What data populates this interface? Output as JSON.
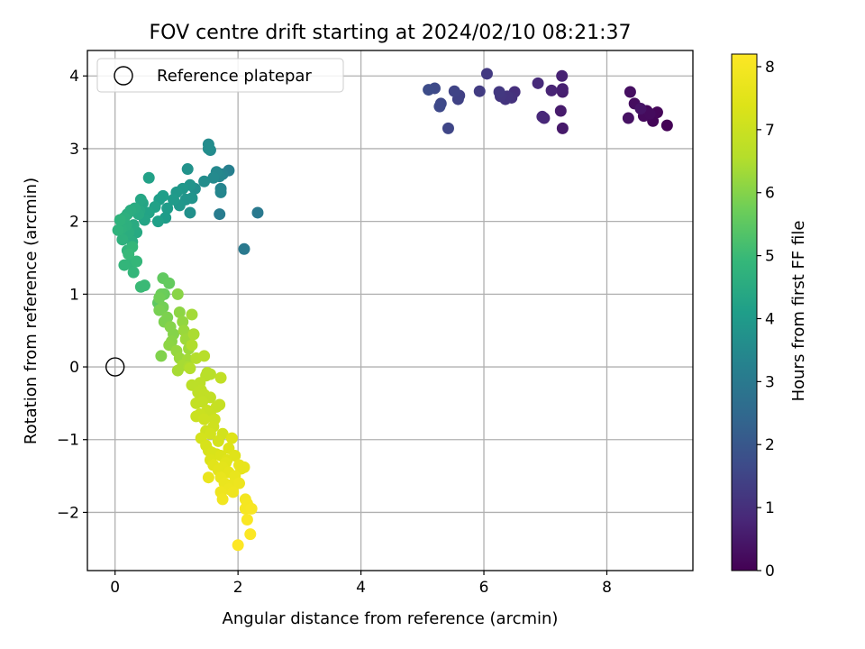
{
  "chart_data": {
    "type": "scatter",
    "title": "FOV centre drift starting at 2024/02/10 08:21:37",
    "xlabel": "Angular distance from reference (arcmin)",
    "ylabel": "Rotation from reference (arcmin)",
    "xlim": [
      -0.45,
      9.4
    ],
    "ylim": [
      -2.8,
      4.35
    ],
    "x_ticks": [
      0,
      2,
      4,
      6,
      8
    ],
    "y_ticks": [
      -2,
      -1,
      0,
      1,
      2,
      3,
      4
    ],
    "x_tick_labels": [
      "0",
      "2",
      "4",
      "6",
      "8"
    ],
    "y_tick_labels": [
      "−2",
      "−1",
      "0",
      "1",
      "2",
      "3",
      "4"
    ],
    "grid": true,
    "legend": {
      "location": "top-left",
      "entries": [
        {
          "label": "Reference platepar",
          "marker": "open-circle",
          "color": "#000000"
        }
      ]
    },
    "reference_point": {
      "x": 0,
      "y": 0
    },
    "colorbar": {
      "label": "Hours from first FF file",
      "colormap": "viridis",
      "range": [
        0,
        8.2
      ],
      "ticks": [
        0,
        1,
        2,
        3,
        4,
        5,
        6,
        7,
        8
      ],
      "tick_labels": [
        "0",
        "1",
        "2",
        "3",
        "4",
        "5",
        "6",
        "7",
        "8"
      ]
    },
    "points_columns": [
      "x",
      "y",
      "hours"
    ],
    "points": [
      [
        8.98,
        3.32,
        0.05
      ],
      [
        8.75,
        3.38,
        0.1
      ],
      [
        8.82,
        3.5,
        0.12
      ],
      [
        8.65,
        3.52,
        0.15
      ],
      [
        8.6,
        3.45,
        0.18
      ],
      [
        8.7,
        3.48,
        0.2
      ],
      [
        8.45,
        3.62,
        0.25
      ],
      [
        8.38,
        3.78,
        0.3
      ],
      [
        8.35,
        3.42,
        0.35
      ],
      [
        8.55,
        3.55,
        0.4
      ],
      [
        7.28,
        3.28,
        0.5
      ],
      [
        7.25,
        3.52,
        0.55
      ],
      [
        7.28,
        3.78,
        0.6
      ],
      [
        7.28,
        3.82,
        0.65
      ],
      [
        7.27,
        4.0,
        0.7
      ],
      [
        7.1,
        3.8,
        0.75
      ],
      [
        6.98,
        3.42,
        0.8
      ],
      [
        6.95,
        3.44,
        0.85
      ],
      [
        6.88,
        3.9,
        0.9
      ],
      [
        6.5,
        3.78,
        1.0
      ],
      [
        6.45,
        3.7,
        1.05
      ],
      [
        6.38,
        3.72,
        1.1
      ],
      [
        6.35,
        3.68,
        1.12
      ],
      [
        6.27,
        3.72,
        1.15
      ],
      [
        6.25,
        3.78,
        1.2
      ],
      [
        6.05,
        4.03,
        1.25
      ],
      [
        5.93,
        3.79,
        1.3
      ],
      [
        5.6,
        3.73,
        1.4
      ],
      [
        5.58,
        3.68,
        1.45
      ],
      [
        5.52,
        3.79,
        1.5
      ],
      [
        5.42,
        3.28,
        1.55
      ],
      [
        5.3,
        3.62,
        1.6
      ],
      [
        5.28,
        3.58,
        1.62
      ],
      [
        5.2,
        3.83,
        1.65
      ],
      [
        5.1,
        3.81,
        1.7
      ],
      [
        2.32,
        2.12,
        3.0
      ],
      [
        2.1,
        1.62,
        3.0
      ],
      [
        1.7,
        2.1,
        3.1
      ],
      [
        1.85,
        2.7,
        3.2
      ],
      [
        1.75,
        2.65,
        3.3
      ],
      [
        1.72,
        2.45,
        3.35
      ],
      [
        1.72,
        2.4,
        3.4
      ],
      [
        1.7,
        2.62,
        3.4
      ],
      [
        1.65,
        2.68,
        3.45
      ],
      [
        1.6,
        2.6,
        3.5
      ],
      [
        1.55,
        2.98,
        3.5
      ],
      [
        1.52,
        3.06,
        3.55
      ],
      [
        1.52,
        3.0,
        3.6
      ],
      [
        1.45,
        2.55,
        3.6
      ],
      [
        1.3,
        2.45,
        3.65
      ],
      [
        1.22,
        2.12,
        3.7
      ],
      [
        1.18,
        2.72,
        3.75
      ],
      [
        1.25,
        2.32,
        3.8
      ],
      [
        1.22,
        2.5,
        3.8
      ],
      [
        1.15,
        2.3,
        3.85
      ],
      [
        1.1,
        2.45,
        3.9
      ],
      [
        1.05,
        2.22,
        3.9
      ],
      [
        1.0,
        2.4,
        3.95
      ],
      [
        0.95,
        2.3,
        4.0
      ],
      [
        0.85,
        2.18,
        4.05
      ],
      [
        0.82,
        2.05,
        4.05
      ],
      [
        0.78,
        2.35,
        4.1
      ],
      [
        0.72,
        2.3,
        4.1
      ],
      [
        0.7,
        2.0,
        4.15
      ],
      [
        0.65,
        2.2,
        4.2
      ],
      [
        0.55,
        2.6,
        4.2
      ],
      [
        0.55,
        2.12,
        4.25
      ],
      [
        0.48,
        2.02,
        4.3
      ],
      [
        0.45,
        2.25,
        4.3
      ],
      [
        0.42,
        2.3,
        4.35
      ],
      [
        0.4,
        2.15,
        4.4
      ],
      [
        0.38,
        2.1,
        4.45
      ],
      [
        0.35,
        1.85,
        4.45
      ],
      [
        0.32,
        2.18,
        4.5
      ],
      [
        0.3,
        1.95,
        4.5
      ],
      [
        0.28,
        1.72,
        4.55
      ],
      [
        0.25,
        2.15,
        4.55
      ],
      [
        0.22,
        1.85,
        4.6
      ],
      [
        0.2,
        2.1,
        4.6
      ],
      [
        0.18,
        1.95,
        4.65
      ],
      [
        0.15,
        2.05,
        4.65
      ],
      [
        0.12,
        1.75,
        4.7
      ],
      [
        0.1,
        1.9,
        4.7
      ],
      [
        0.08,
        2.02,
        4.75
      ],
      [
        0.05,
        1.88,
        4.75
      ],
      [
        0.2,
        1.6,
        4.8
      ],
      [
        0.25,
        1.42,
        4.8
      ],
      [
        0.15,
        1.4,
        4.85
      ],
      [
        0.3,
        1.3,
        4.85
      ],
      [
        0.35,
        1.45,
        4.9
      ],
      [
        0.28,
        1.65,
        4.9
      ],
      [
        0.22,
        1.55,
        4.95
      ],
      [
        0.42,
        1.1,
        5.0
      ],
      [
        0.48,
        1.12,
        5.0
      ],
      [
        0.7,
        0.88,
        5.5
      ],
      [
        0.78,
        1.22,
        5.55
      ],
      [
        0.88,
        1.15,
        5.6
      ],
      [
        0.8,
        1.0,
        5.65
      ],
      [
        0.75,
        1.0,
        5.7
      ],
      [
        0.72,
        0.95,
        5.75
      ],
      [
        0.78,
        0.82,
        5.8
      ],
      [
        0.72,
        0.78,
        5.85
      ],
      [
        0.8,
        0.62,
        5.9
      ],
      [
        0.85,
        0.68,
        5.9
      ],
      [
        0.75,
        0.15,
        5.95
      ],
      [
        0.9,
        0.55,
        6.0
      ],
      [
        0.95,
        0.45,
        6.0
      ],
      [
        1.02,
        1.0,
        6.05
      ],
      [
        0.92,
        0.35,
        6.05
      ],
      [
        0.88,
        0.3,
        6.1
      ],
      [
        1.05,
        0.75,
        6.1
      ],
      [
        1.1,
        0.62,
        6.15
      ],
      [
        1.0,
        0.22,
        6.2
      ],
      [
        1.05,
        0.12,
        6.25
      ],
      [
        1.12,
        0.5,
        6.25
      ],
      [
        1.15,
        0.38,
        6.3
      ],
      [
        1.2,
        0.25,
        6.3
      ],
      [
        1.25,
        0.72,
        6.35
      ],
      [
        1.18,
        0.1,
        6.35
      ],
      [
        1.02,
        -0.05,
        6.4
      ],
      [
        1.1,
        0.02,
        6.4
      ],
      [
        1.2,
        0.0,
        6.45
      ],
      [
        1.28,
        0.45,
        6.45
      ],
      [
        1.25,
        0.3,
        6.5
      ],
      [
        1.32,
        0.12,
        6.55
      ],
      [
        1.22,
        -0.02,
        6.55
      ],
      [
        1.45,
        0.15,
        6.6
      ],
      [
        1.5,
        -0.08,
        6.6
      ],
      [
        1.48,
        -0.12,
        6.65
      ],
      [
        1.55,
        -0.1,
        6.65
      ],
      [
        1.38,
        -0.22,
        6.7
      ],
      [
        1.25,
        -0.25,
        6.7
      ],
      [
        1.4,
        -0.32,
        6.75
      ],
      [
        1.35,
        -0.35,
        6.75
      ],
      [
        1.45,
        -0.38,
        6.8
      ],
      [
        1.55,
        -0.42,
        6.8
      ],
      [
        1.72,
        -0.15,
        6.8
      ],
      [
        1.32,
        -0.5,
        6.85
      ],
      [
        1.42,
        -0.48,
        6.85
      ],
      [
        1.65,
        -0.55,
        6.9
      ],
      [
        1.7,
        -0.52,
        6.9
      ],
      [
        1.5,
        -0.6,
        6.95
      ],
      [
        1.55,
        -0.65,
        6.95
      ],
      [
        1.38,
        -0.65,
        7.0
      ],
      [
        1.32,
        -0.68,
        7.0
      ],
      [
        1.45,
        -0.72,
        7.05
      ],
      [
        1.62,
        -0.72,
        7.05
      ],
      [
        1.6,
        -0.82,
        7.1
      ],
      [
        1.48,
        -0.88,
        7.1
      ],
      [
        1.55,
        -0.92,
        7.15
      ],
      [
        1.75,
        -0.92,
        7.15
      ],
      [
        1.4,
        -0.98,
        7.2
      ],
      [
        1.68,
        -1.02,
        7.2
      ],
      [
        1.48,
        -1.08,
        7.25
      ],
      [
        1.52,
        -1.15,
        7.25
      ],
      [
        1.58,
        -1.18,
        7.3
      ],
      [
        1.65,
        -1.2,
        7.3
      ],
      [
        1.72,
        -1.22,
        7.35
      ],
      [
        1.55,
        -1.28,
        7.35
      ],
      [
        1.9,
        -0.98,
        7.4
      ],
      [
        1.85,
        -1.12,
        7.4
      ],
      [
        1.95,
        -1.22,
        7.45
      ],
      [
        1.82,
        -1.28,
        7.45
      ],
      [
        1.6,
        -1.35,
        7.5
      ],
      [
        1.8,
        -1.32,
        7.5
      ],
      [
        1.75,
        -1.38,
        7.55
      ],
      [
        1.68,
        -1.42,
        7.55
      ],
      [
        1.85,
        -1.45,
        7.6
      ],
      [
        2.05,
        -1.4,
        7.6
      ],
      [
        2.02,
        -1.35,
        7.65
      ],
      [
        2.1,
        -1.38,
        7.65
      ],
      [
        1.95,
        -1.5,
        7.7
      ],
      [
        1.72,
        -1.52,
        7.7
      ],
      [
        1.52,
        -1.52,
        7.72
      ],
      [
        1.78,
        -1.6,
        7.75
      ],
      [
        1.9,
        -1.62,
        7.75
      ],
      [
        1.85,
        -1.68,
        7.8
      ],
      [
        2.02,
        -1.6,
        7.8
      ],
      [
        1.92,
        -1.72,
        7.85
      ],
      [
        1.72,
        -1.72,
        7.85
      ],
      [
        1.75,
        -1.82,
        7.9
      ],
      [
        2.12,
        -1.82,
        7.95
      ],
      [
        2.15,
        -1.88,
        8.0
      ],
      [
        2.12,
        -1.95,
        8.0
      ],
      [
        2.22,
        -1.95,
        8.05
      ],
      [
        2.15,
        -2.1,
        8.1
      ],
      [
        2.2,
        -2.3,
        8.15
      ],
      [
        2.0,
        -2.45,
        8.2
      ]
    ]
  }
}
